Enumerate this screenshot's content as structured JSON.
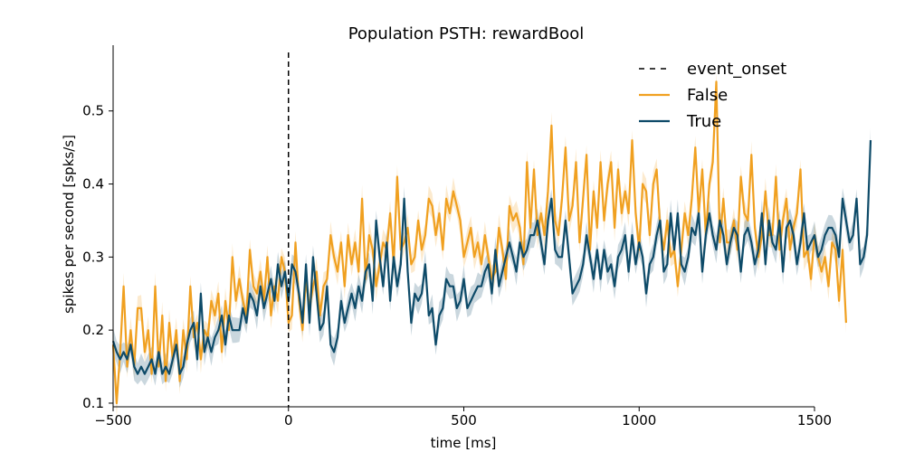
{
  "chart_data": {
    "type": "line",
    "title": "Population PSTH: rewardBool",
    "xlabel": "time [ms]",
    "ylabel": "spikes per second [spks/s]",
    "xlim": [
      -500,
      1500
    ],
    "ylim": [
      0.095,
      0.59
    ],
    "xticks": [
      -500,
      0,
      500,
      1000,
      1500
    ],
    "xtick_labels": [
      "−500",
      "0",
      "500",
      "1000",
      "1500"
    ],
    "yticks": [
      0.1,
      0.2,
      0.3,
      0.4,
      0.5
    ],
    "ytick_labels": [
      "0.1",
      "0.2",
      "0.3",
      "0.4",
      "0.5"
    ],
    "legend_position": "top-right",
    "grid": false,
    "event_onset": {
      "name": "event_onset",
      "x": 0,
      "color": "#000000"
    },
    "x_start": -500,
    "x_step": 10,
    "series": [
      {
        "name": "False",
        "color": "#f0a020",
        "values": [
          0.18,
          0.1,
          0.17,
          0.26,
          0.15,
          0.2,
          0.15,
          0.23,
          0.23,
          0.17,
          0.2,
          0.14,
          0.26,
          0.15,
          0.22,
          0.13,
          0.21,
          0.16,
          0.2,
          0.13,
          0.2,
          0.16,
          0.26,
          0.19,
          0.21,
          0.16,
          0.2,
          0.19,
          0.24,
          0.22,
          0.25,
          0.17,
          0.24,
          0.2,
          0.3,
          0.24,
          0.27,
          0.24,
          0.22,
          0.31,
          0.26,
          0.25,
          0.28,
          0.24,
          0.3,
          0.22,
          0.26,
          0.24,
          0.3,
          0.28,
          0.21,
          0.22,
          0.32,
          0.24,
          0.2,
          0.27,
          0.23,
          0.26,
          0.28,
          0.22,
          0.26,
          0.27,
          0.33,
          0.3,
          0.28,
          0.32,
          0.26,
          0.33,
          0.29,
          0.32,
          0.28,
          0.38,
          0.27,
          0.33,
          0.31,
          0.26,
          0.29,
          0.32,
          0.31,
          0.36,
          0.29,
          0.41,
          0.31,
          0.32,
          0.34,
          0.29,
          0.3,
          0.35,
          0.31,
          0.33,
          0.38,
          0.37,
          0.33,
          0.36,
          0.31,
          0.38,
          0.36,
          0.39,
          0.37,
          0.35,
          0.3,
          0.32,
          0.34,
          0.3,
          0.32,
          0.29,
          0.33,
          0.3,
          0.27,
          0.28,
          0.34,
          0.31,
          0.27,
          0.37,
          0.35,
          0.36,
          0.34,
          0.29,
          0.43,
          0.34,
          0.42,
          0.33,
          0.36,
          0.33,
          0.39,
          0.48,
          0.35,
          0.33,
          0.38,
          0.45,
          0.35,
          0.37,
          0.43,
          0.32,
          0.38,
          0.44,
          0.31,
          0.39,
          0.34,
          0.43,
          0.35,
          0.4,
          0.43,
          0.34,
          0.42,
          0.36,
          0.39,
          0.36,
          0.46,
          0.36,
          0.31,
          0.4,
          0.39,
          0.33,
          0.4,
          0.42,
          0.34,
          0.31,
          0.35,
          0.3,
          0.31,
          0.26,
          0.31,
          0.36,
          0.33,
          0.38,
          0.45,
          0.36,
          0.42,
          0.33,
          0.4,
          0.43,
          0.54,
          0.32,
          0.38,
          0.32,
          0.32,
          0.35,
          0.31,
          0.41,
          0.36,
          0.35,
          0.44,
          0.34,
          0.3,
          0.33,
          0.39,
          0.33,
          0.33,
          0.41,
          0.31,
          0.35,
          0.38,
          0.31,
          0.34,
          0.36,
          0.42,
          0.3,
          0.31,
          0.27,
          0.33,
          0.3,
          0.28,
          0.3,
          0.26,
          0.32,
          0.31,
          0.24,
          0.31,
          0.21
        ]
      },
      {
        "name": "True",
        "color": "#0d4a68",
        "values": [
          0.185,
          0.17,
          0.16,
          0.17,
          0.16,
          0.18,
          0.15,
          0.14,
          0.15,
          0.14,
          0.15,
          0.16,
          0.14,
          0.17,
          0.14,
          0.15,
          0.14,
          0.16,
          0.18,
          0.14,
          0.15,
          0.18,
          0.2,
          0.21,
          0.16,
          0.25,
          0.17,
          0.19,
          0.17,
          0.19,
          0.2,
          0.22,
          0.18,
          0.22,
          0.2,
          0.2,
          0.2,
          0.23,
          0.21,
          0.25,
          0.24,
          0.22,
          0.26,
          0.23,
          0.25,
          0.27,
          0.24,
          0.29,
          0.26,
          0.28,
          0.24,
          0.29,
          0.28,
          0.25,
          0.21,
          0.29,
          0.21,
          0.3,
          0.25,
          0.2,
          0.21,
          0.26,
          0.18,
          0.17,
          0.19,
          0.24,
          0.21,
          0.23,
          0.25,
          0.23,
          0.26,
          0.24,
          0.28,
          0.29,
          0.24,
          0.35,
          0.3,
          0.26,
          0.32,
          0.24,
          0.3,
          0.26,
          0.29,
          0.38,
          0.28,
          0.21,
          0.25,
          0.24,
          0.25,
          0.29,
          0.22,
          0.23,
          0.18,
          0.22,
          0.23,
          0.27,
          0.26,
          0.26,
          0.23,
          0.24,
          0.27,
          0.23,
          0.24,
          0.25,
          0.26,
          0.26,
          0.28,
          0.29,
          0.25,
          0.31,
          0.26,
          0.28,
          0.3,
          0.32,
          0.3,
          0.28,
          0.32,
          0.3,
          0.31,
          0.33,
          0.33,
          0.35,
          0.32,
          0.29,
          0.35,
          0.38,
          0.31,
          0.3,
          0.3,
          0.35,
          0.3,
          0.25,
          0.26,
          0.27,
          0.29,
          0.33,
          0.3,
          0.27,
          0.31,
          0.27,
          0.31,
          0.28,
          0.29,
          0.26,
          0.3,
          0.31,
          0.33,
          0.28,
          0.33,
          0.29,
          0.32,
          0.3,
          0.25,
          0.29,
          0.3,
          0.33,
          0.35,
          0.28,
          0.29,
          0.36,
          0.31,
          0.36,
          0.29,
          0.28,
          0.3,
          0.34,
          0.33,
          0.36,
          0.28,
          0.33,
          0.36,
          0.33,
          0.31,
          0.35,
          0.33,
          0.29,
          0.32,
          0.34,
          0.33,
          0.28,
          0.33,
          0.34,
          0.32,
          0.29,
          0.31,
          0.36,
          0.29,
          0.35,
          0.32,
          0.31,
          0.35,
          0.28,
          0.34,
          0.35,
          0.33,
          0.29,
          0.32,
          0.36,
          0.31,
          0.32,
          0.33,
          0.3,
          0.31,
          0.33,
          0.34,
          0.34,
          0.33,
          0.3,
          0.38,
          0.35,
          0.32,
          0.33,
          0.38,
          0.29,
          0.3,
          0.33,
          0.46
        ]
      }
    ]
  }
}
